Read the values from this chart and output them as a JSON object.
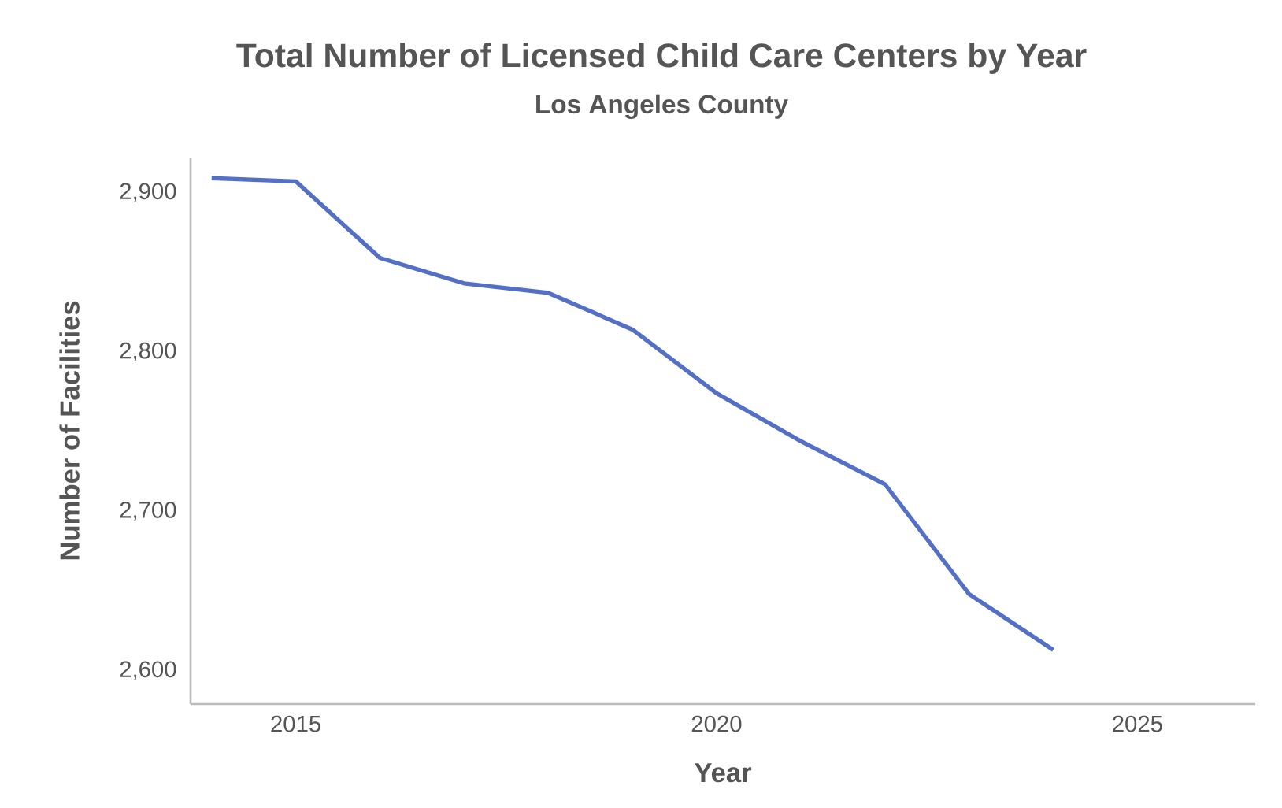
{
  "chart_data": {
    "type": "line",
    "title": "Total Number of Licensed Child Care Centers by Year",
    "subtitle": "Los Angeles County",
    "xlabel": "Year",
    "ylabel": "Number of Facilities",
    "x": [
      2014,
      2015,
      2016,
      2017,
      2018,
      2019,
      2020,
      2021,
      2022,
      2023,
      2024
    ],
    "values": [
      2909,
      2907,
      2859,
      2843,
      2837,
      2814,
      2774,
      2744,
      2717,
      2648,
      2613
    ],
    "color": "#5470c6",
    "xlim": [
      2013.75,
      2026.4
    ],
    "ylim": [
      2579,
      2922
    ],
    "xticks": [
      2015,
      2020,
      2025
    ],
    "yticks": [
      {
        "value": 2600,
        "label": "2,600"
      },
      {
        "value": 2700,
        "label": "2,700"
      },
      {
        "value": 2800,
        "label": "2,800"
      },
      {
        "value": 2900,
        "label": "2,900"
      }
    ],
    "marker": "none",
    "line_style": "solid"
  }
}
